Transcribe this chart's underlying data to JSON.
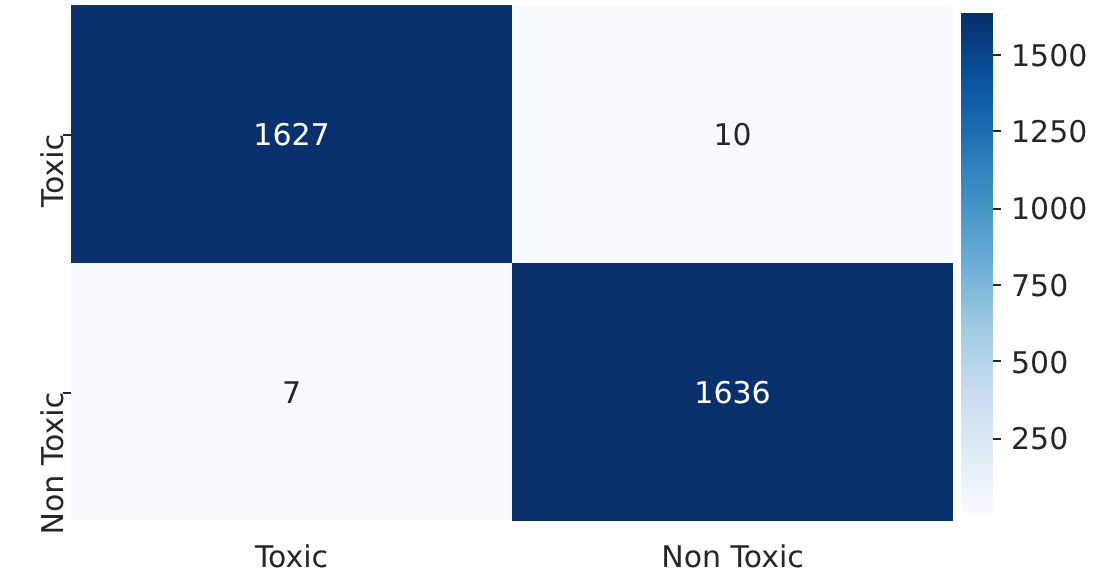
{
  "chart_data": {
    "type": "heatmap",
    "categories": [
      "Toxic",
      "Non Toxic"
    ],
    "y_categories": [
      "Toxic",
      "Non Toxic"
    ],
    "cells": [
      [
        1627,
        10
      ],
      [
        7,
        1636
      ]
    ],
    "clim": [
      7,
      1636
    ],
    "cticks": [
      250,
      500,
      750,
      1000,
      1250,
      1500
    ],
    "data_labels": true
  }
}
